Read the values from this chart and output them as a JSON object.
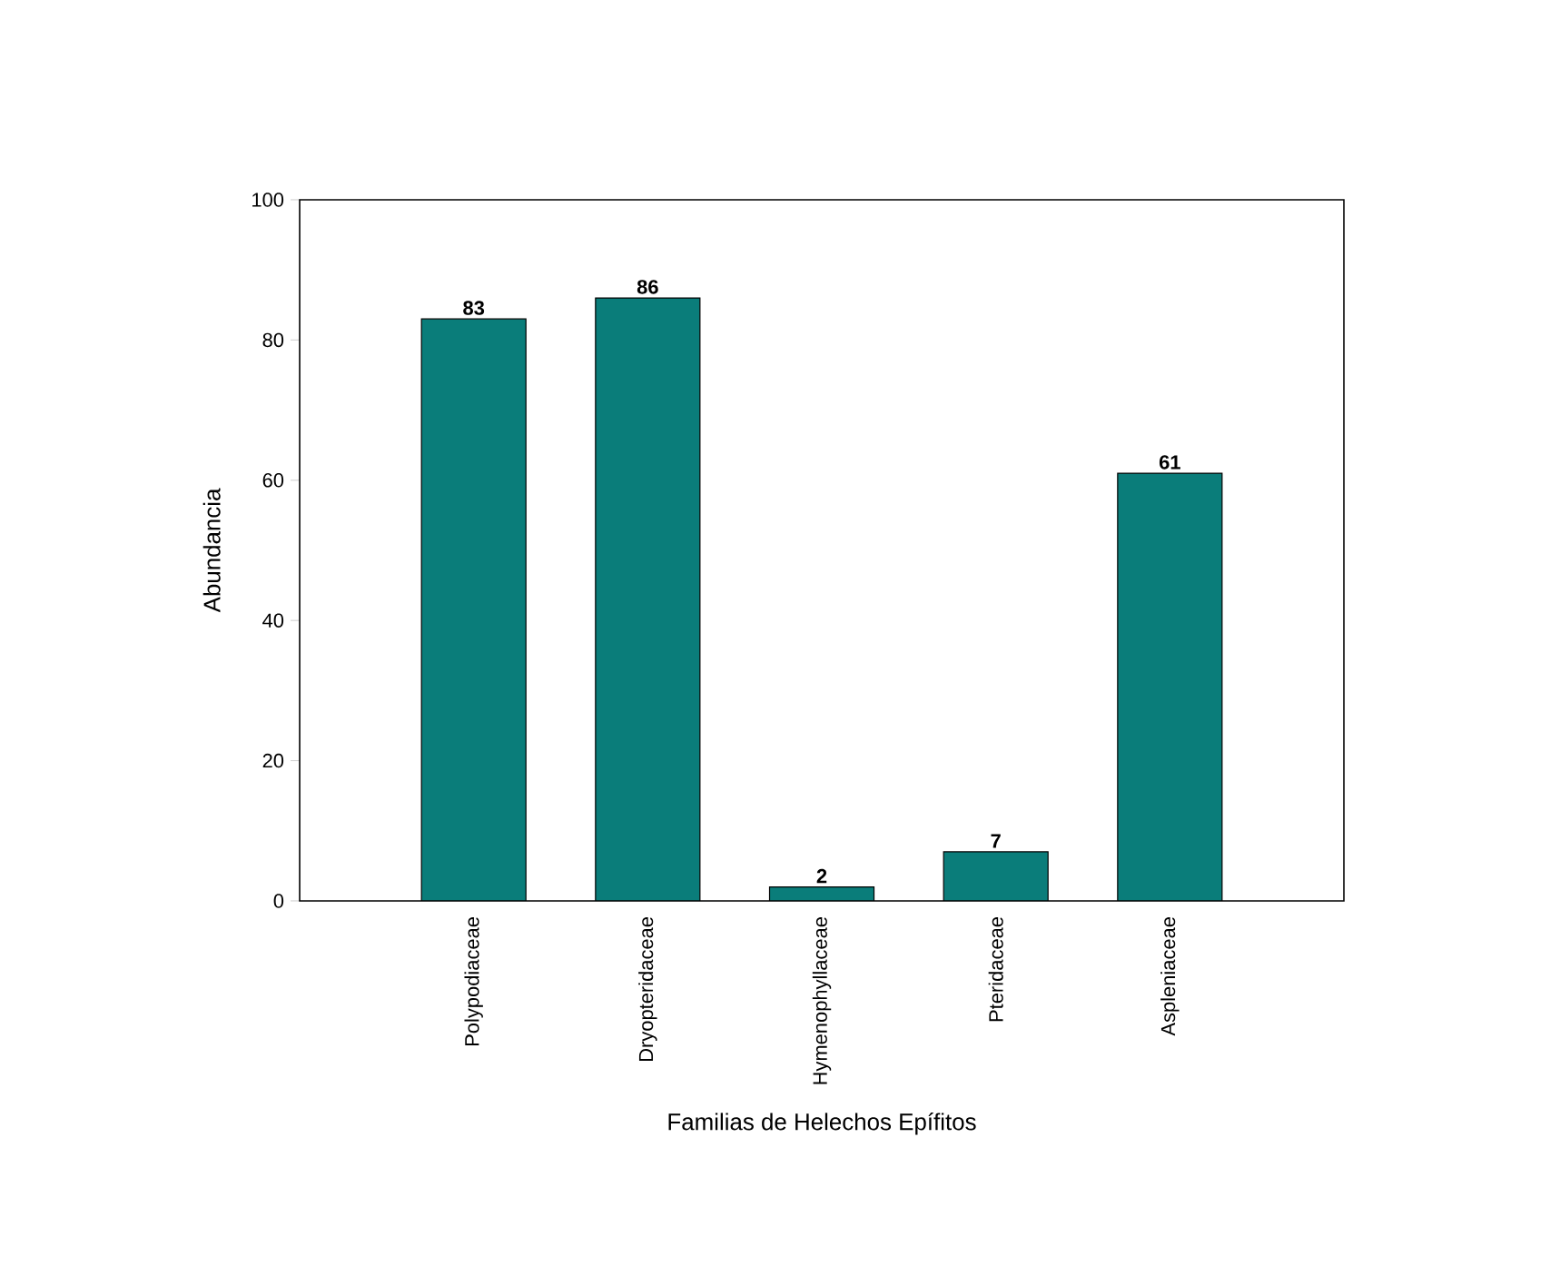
{
  "chart_data": {
    "type": "bar",
    "xlabel": "Familias de Helechos Epífitos",
    "ylabel": "Abundancia",
    "categories": [
      "Polypodiaceae",
      "Dryopteridaceae",
      "Hymenophyllaceae",
      "Pteridaceae",
      "Aspleniaceae"
    ],
    "values": [
      83,
      86,
      2,
      7,
      61
    ],
    "color": "#0a7d7a",
    "ylim": [
      0,
      100
    ],
    "yticks": [
      0,
      20,
      40,
      60,
      80,
      100
    ],
    "data_labels": true
  }
}
